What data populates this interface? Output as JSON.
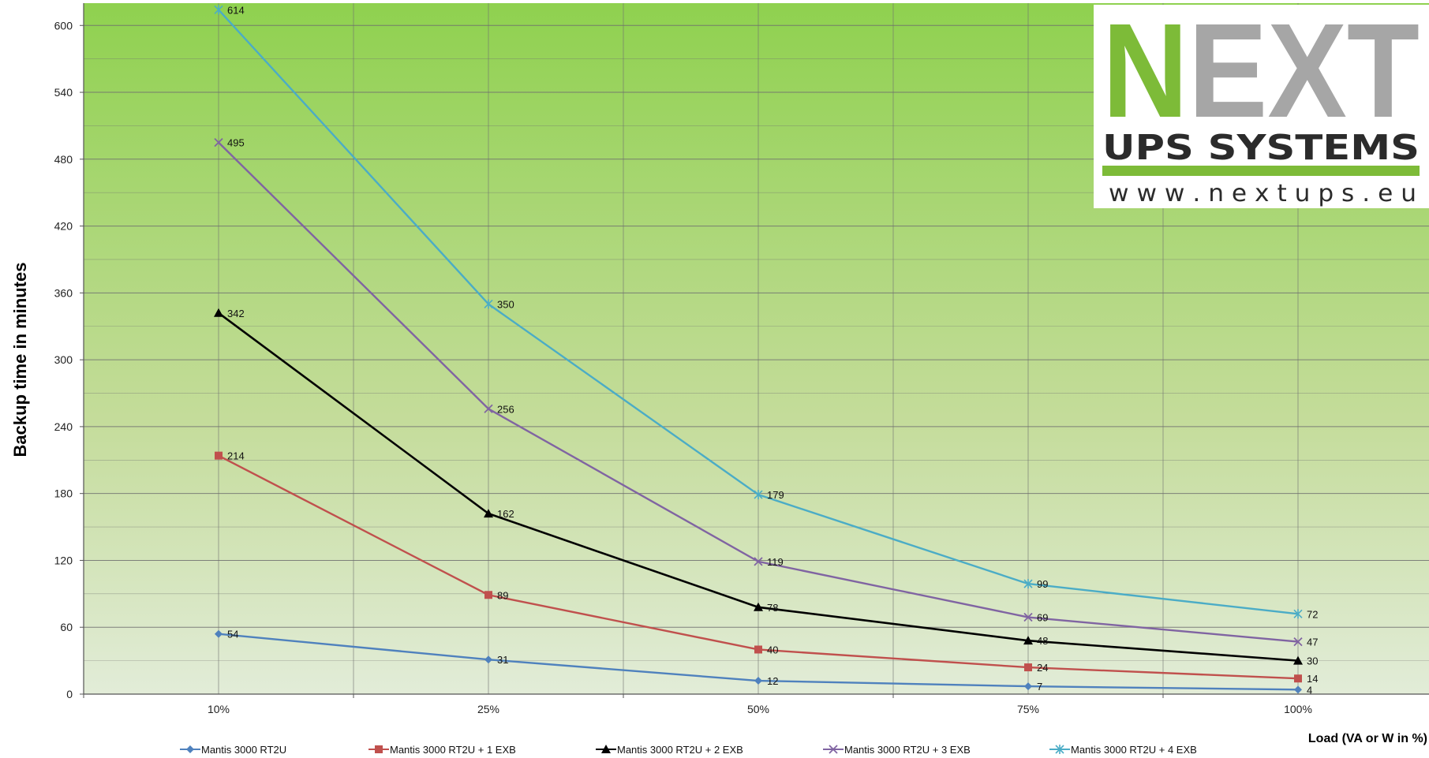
{
  "chart_data": {
    "type": "line",
    "title": "",
    "xlabel": "Load (VA or W in %)",
    "ylabel": "Backup time in minutes",
    "categories": [
      "10%",
      "25%",
      "50%",
      "75%",
      "100%"
    ],
    "ylim": [
      0,
      620
    ],
    "yticks": [
      0,
      60,
      120,
      180,
      240,
      300,
      360,
      420,
      480,
      540,
      600
    ],
    "grid": true,
    "legend_position": "bottom",
    "series": [
      {
        "name": "Mantis 3000 RT2U",
        "values": [
          54,
          31,
          12,
          7,
          4
        ],
        "color": "#4f81bd",
        "marker": "diamond"
      },
      {
        "name": "Mantis 3000 RT2U + 1 EXB",
        "values": [
          214,
          89,
          40,
          24,
          14
        ],
        "color": "#c0504d",
        "marker": "square"
      },
      {
        "name": "Mantis 3000 RT2U + 2 EXB",
        "values": [
          342,
          162,
          78,
          48,
          30
        ],
        "color": "#000000",
        "marker": "triangle"
      },
      {
        "name": "Mantis 3000 RT2U + 3 EXB",
        "values": [
          495,
          256,
          119,
          69,
          47
        ],
        "color": "#8064a2",
        "marker": "x"
      },
      {
        "name": "Mantis 3000 RT2U + 4 EXB",
        "values": [
          614,
          350,
          179,
          99,
          72
        ],
        "color": "#4bacc6",
        "marker": "star"
      }
    ]
  },
  "logo": {
    "brand": "NEXT",
    "subtitle": "UPS SYSTEMS",
    "url": "w w w . n e x t u p s . e u",
    "green": "#7dbb38",
    "grey": "#a6a6a6"
  },
  "colors": {
    "plot_top": "#8fd14f",
    "plot_bottom": "#e2ecd8",
    "grid": "#6f6f6f"
  }
}
